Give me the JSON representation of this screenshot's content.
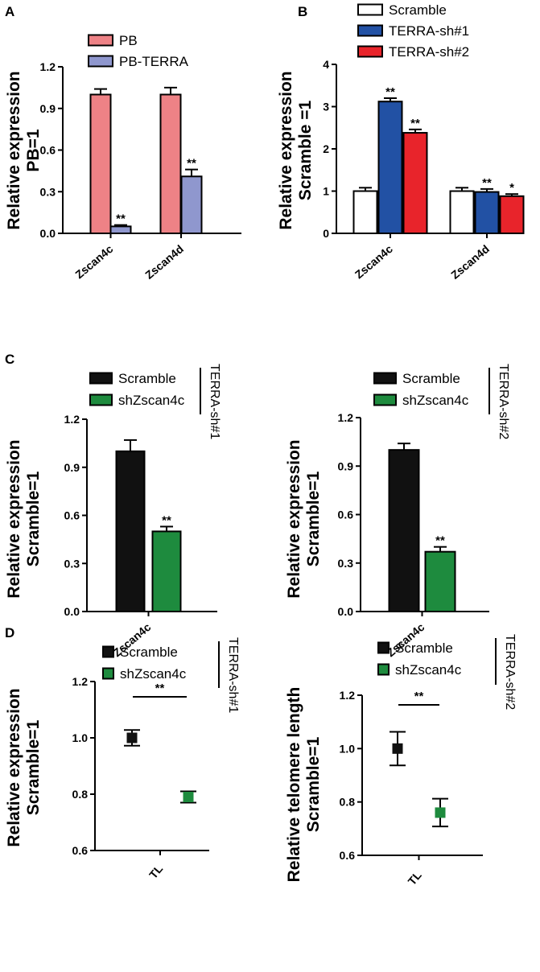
{
  "colors": {
    "pb": "#EE8286",
    "pb_terra": "#8F97CE",
    "scramble_white": "#FFFFFF",
    "terra_sh1": "#2251A4",
    "terra_sh2": "#E8242B",
    "black": "#111111",
    "green": "#1E8B3E"
  },
  "chart_data": [
    {
      "panel": "A",
      "type": "bar",
      "ylabel": "Relative expression PB=1",
      "ylim": [
        0,
        1.2
      ],
      "yticks": [
        "0.0",
        "0.3",
        "0.6",
        "0.9",
        "1.2"
      ],
      "categories": [
        "Zscan4c",
        "Zscan4d"
      ],
      "legend": [
        "PB",
        "PB-TERRA"
      ],
      "series": [
        {
          "name": "PB",
          "values": [
            1.0,
            1.0
          ],
          "errors": [
            0.04,
            0.05
          ],
          "sig": [
            "",
            ""
          ]
        },
        {
          "name": "PB-TERRA",
          "values": [
            0.05,
            0.41
          ],
          "errors": [
            0.01,
            0.05
          ],
          "sig": [
            "**",
            "**"
          ]
        }
      ]
    },
    {
      "panel": "B",
      "type": "bar",
      "ylabel": "Relative expression Scramble =1",
      "ylim": [
        0,
        4
      ],
      "yticks": [
        "0",
        "1",
        "2",
        "3",
        "4"
      ],
      "categories": [
        "Zscan4c",
        "Zscan4d"
      ],
      "legend": [
        "Scramble",
        "TERRA-sh#1",
        "TERRA-sh#2"
      ],
      "series": [
        {
          "name": "Scramble",
          "values": [
            1.0,
            1.0
          ],
          "errors": [
            0.08,
            0.08
          ],
          "sig": [
            "",
            ""
          ]
        },
        {
          "name": "TERRA-sh#1",
          "values": [
            3.12,
            0.98
          ],
          "errors": [
            0.08,
            0.07
          ],
          "sig": [
            "**",
            "**"
          ]
        },
        {
          "name": "TERRA-sh#2",
          "values": [
            2.38,
            0.88
          ],
          "errors": [
            0.08,
            0.05
          ],
          "sig": [
            "**",
            "*"
          ]
        }
      ]
    },
    {
      "panel": "C",
      "type": "bar",
      "ylabel": "Relative expression Scramble=1",
      "ylim": [
        0,
        1.2
      ],
      "yticks": [
        "0.0",
        "0.3",
        "0.6",
        "0.9",
        "1.2"
      ],
      "categories": [
        "Zscan4c"
      ],
      "legend": [
        "Scramble",
        "shZscan4c"
      ],
      "condition": "TERRA-sh#1",
      "series": [
        {
          "name": "Scramble",
          "values": [
            1.0
          ],
          "errors": [
            0.07
          ],
          "sig": [
            ""
          ]
        },
        {
          "name": "shZscan4c",
          "values": [
            0.5
          ],
          "errors": [
            0.03
          ],
          "sig": [
            "**"
          ]
        }
      ]
    },
    {
      "panel": "C",
      "type": "bar",
      "ylabel": "Relative expression Scramble=1",
      "ylim": [
        0,
        1.2
      ],
      "yticks": [
        "0.0",
        "0.3",
        "0.6",
        "0.9",
        "1.2"
      ],
      "categories": [
        "Zscan4c"
      ],
      "legend": [
        "Scramble",
        "shZscan4c"
      ],
      "condition": "TERRA-sh#2",
      "series": [
        {
          "name": "Scramble",
          "values": [
            1.0
          ],
          "errors": [
            0.04
          ],
          "sig": [
            ""
          ]
        },
        {
          "name": "shZscan4c",
          "values": [
            0.37
          ],
          "errors": [
            0.03
          ],
          "sig": [
            "**"
          ]
        }
      ]
    },
    {
      "panel": "D",
      "type": "scatter",
      "ylabel": "Relative expression Scramble=1",
      "ylim": [
        0.6,
        1.2
      ],
      "yticks": [
        "0.6",
        "0.8",
        "1.0",
        "1.2"
      ],
      "categories": [
        "TL"
      ],
      "legend": [
        "Scramble",
        "shZscan4c"
      ],
      "condition": "TERRA-sh#1",
      "series": [
        {
          "name": "Scramble",
          "values": [
            1.0
          ],
          "errors": [
            0.028
          ]
        },
        {
          "name": "shZscan4c",
          "values": [
            0.79
          ],
          "errors": [
            0.02
          ]
        }
      ],
      "sig": "**"
    },
    {
      "panel": "D",
      "type": "scatter",
      "ylabel": "Relative telomere length Scramble=1",
      "ylim": [
        0.6,
        1.2
      ],
      "yticks": [
        "0.6",
        "0.8",
        "1.0",
        "1.2"
      ],
      "categories": [
        "TL"
      ],
      "legend": [
        "Scramble",
        "shZscan4c"
      ],
      "condition": "TERRA-sh#2",
      "series": [
        {
          "name": "Scramble",
          "values": [
            1.0
          ],
          "errors": [
            0.063
          ]
        },
        {
          "name": "shZscan4c",
          "values": [
            0.76
          ],
          "errors": [
            0.052
          ]
        }
      ],
      "sig": "**"
    }
  ],
  "panel_letters": [
    "A",
    "B",
    "C",
    "D"
  ]
}
